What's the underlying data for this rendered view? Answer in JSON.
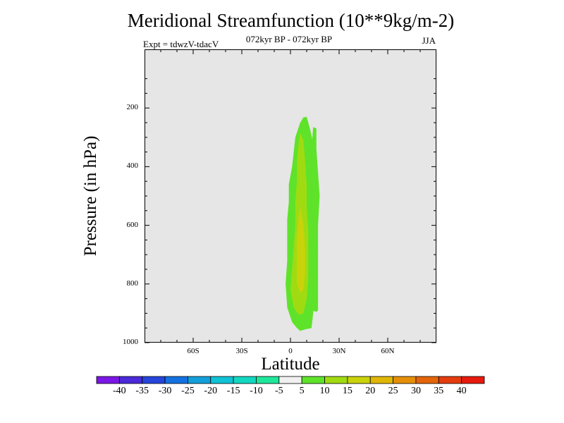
{
  "title": "Meridional Streamfunction (10**9kg/m-2)",
  "subtitle": "072kyr BP - 072kyr BP",
  "expt": "Expt = tdwzV-tdacV",
  "season": "JJA",
  "chart_data": {
    "type": "heatmap",
    "xlabel": "Latitude",
    "ylabel": "Pressure (in hPa)",
    "xlim": [
      -90,
      90
    ],
    "ylim": [
      1000,
      0
    ],
    "y_reversed": true,
    "x_ticks": [
      -60,
      -30,
      0,
      30,
      60
    ],
    "x_tick_labels": [
      "60S",
      "30S",
      "0",
      "30N",
      "60N"
    ],
    "y_ticks": [
      200,
      400,
      600,
      800,
      1000
    ],
    "y_tick_labels": [
      "200",
      "400",
      "600",
      "800",
      "1000"
    ],
    "missing_color": "#e6e6e6",
    "contour_levels": [
      {
        "value": 5,
        "color": "#5ee32a",
        "polygon": [
          [
            10,
            230
          ],
          [
            12,
            270
          ],
          [
            14,
            320
          ],
          [
            15,
            380
          ],
          [
            15,
            450
          ],
          [
            16,
            520
          ],
          [
            16,
            600
          ],
          [
            17,
            680
          ],
          [
            16,
            760
          ],
          [
            15,
            830
          ],
          [
            14,
            900
          ],
          [
            13,
            950
          ],
          [
            9,
            955
          ],
          [
            6,
            960
          ],
          [
            4,
            950
          ],
          [
            1,
            930
          ],
          [
            -2,
            880
          ],
          [
            -3,
            800
          ],
          [
            -2,
            720
          ],
          [
            -2,
            650
          ],
          [
            -2,
            580
          ],
          [
            -1,
            520
          ],
          [
            -1,
            460
          ],
          [
            1,
            400
          ],
          [
            2,
            350
          ],
          [
            3,
            300
          ],
          [
            6,
            250
          ],
          [
            8,
            232
          ]
        ]
      },
      {
        "value": 5,
        "color": "#5ee32a",
        "polygon": [
          [
            14,
            265
          ],
          [
            16,
            270
          ],
          [
            16,
            340
          ],
          [
            17,
            420
          ],
          [
            18,
            500
          ],
          [
            17,
            600
          ],
          [
            17,
            700
          ],
          [
            17,
            800
          ],
          [
            17,
            890
          ],
          [
            16,
            895
          ],
          [
            13,
            890
          ],
          [
            13,
            800
          ],
          [
            14,
            700
          ],
          [
            13,
            600
          ],
          [
            13,
            500
          ],
          [
            13,
            420
          ],
          [
            13,
            340
          ]
        ]
      },
      {
        "value": 10,
        "color": "#a0db12",
        "polygon": [
          [
            6,
            285
          ],
          [
            8,
            310
          ],
          [
            9,
            380
          ],
          [
            10,
            460
          ],
          [
            10,
            540
          ],
          [
            11,
            620
          ],
          [
            11,
            700
          ],
          [
            11,
            780
          ],
          [
            10,
            850
          ],
          [
            8,
            900
          ],
          [
            5,
            905
          ],
          [
            2,
            880
          ],
          [
            0,
            820
          ],
          [
            1,
            750
          ],
          [
            2,
            680
          ],
          [
            3,
            600
          ],
          [
            3,
            520
          ],
          [
            4,
            450
          ],
          [
            4,
            380
          ],
          [
            5,
            320
          ]
        ]
      },
      {
        "value": 15,
        "color": "#c9d30a",
        "polygon": [
          [
            6,
            540
          ],
          [
            8,
            600
          ],
          [
            9,
            680
          ],
          [
            9,
            760
          ],
          [
            8,
            820
          ],
          [
            6,
            830
          ],
          [
            4,
            800
          ],
          [
            4,
            720
          ],
          [
            4,
            640
          ],
          [
            5,
            580
          ]
        ]
      }
    ],
    "colorbar": {
      "labels": [
        "-40",
        "-35",
        "-30",
        "-25",
        "-20",
        "-15",
        "-10",
        "-5",
        "5",
        "10",
        "15",
        "20",
        "25",
        "30",
        "35",
        "40"
      ],
      "colors": [
        "#7b17e6",
        "#4a2ad9",
        "#2545db",
        "#1571e0",
        "#139fdc",
        "#10c2d6",
        "#12d7c1",
        "#1fe79a",
        "#f0f0f0",
        "#5ee32a",
        "#a0db12",
        "#c9d30a",
        "#e0b707",
        "#e58f08",
        "#e4640a",
        "#e53b0e",
        "#e61a0e"
      ]
    }
  }
}
